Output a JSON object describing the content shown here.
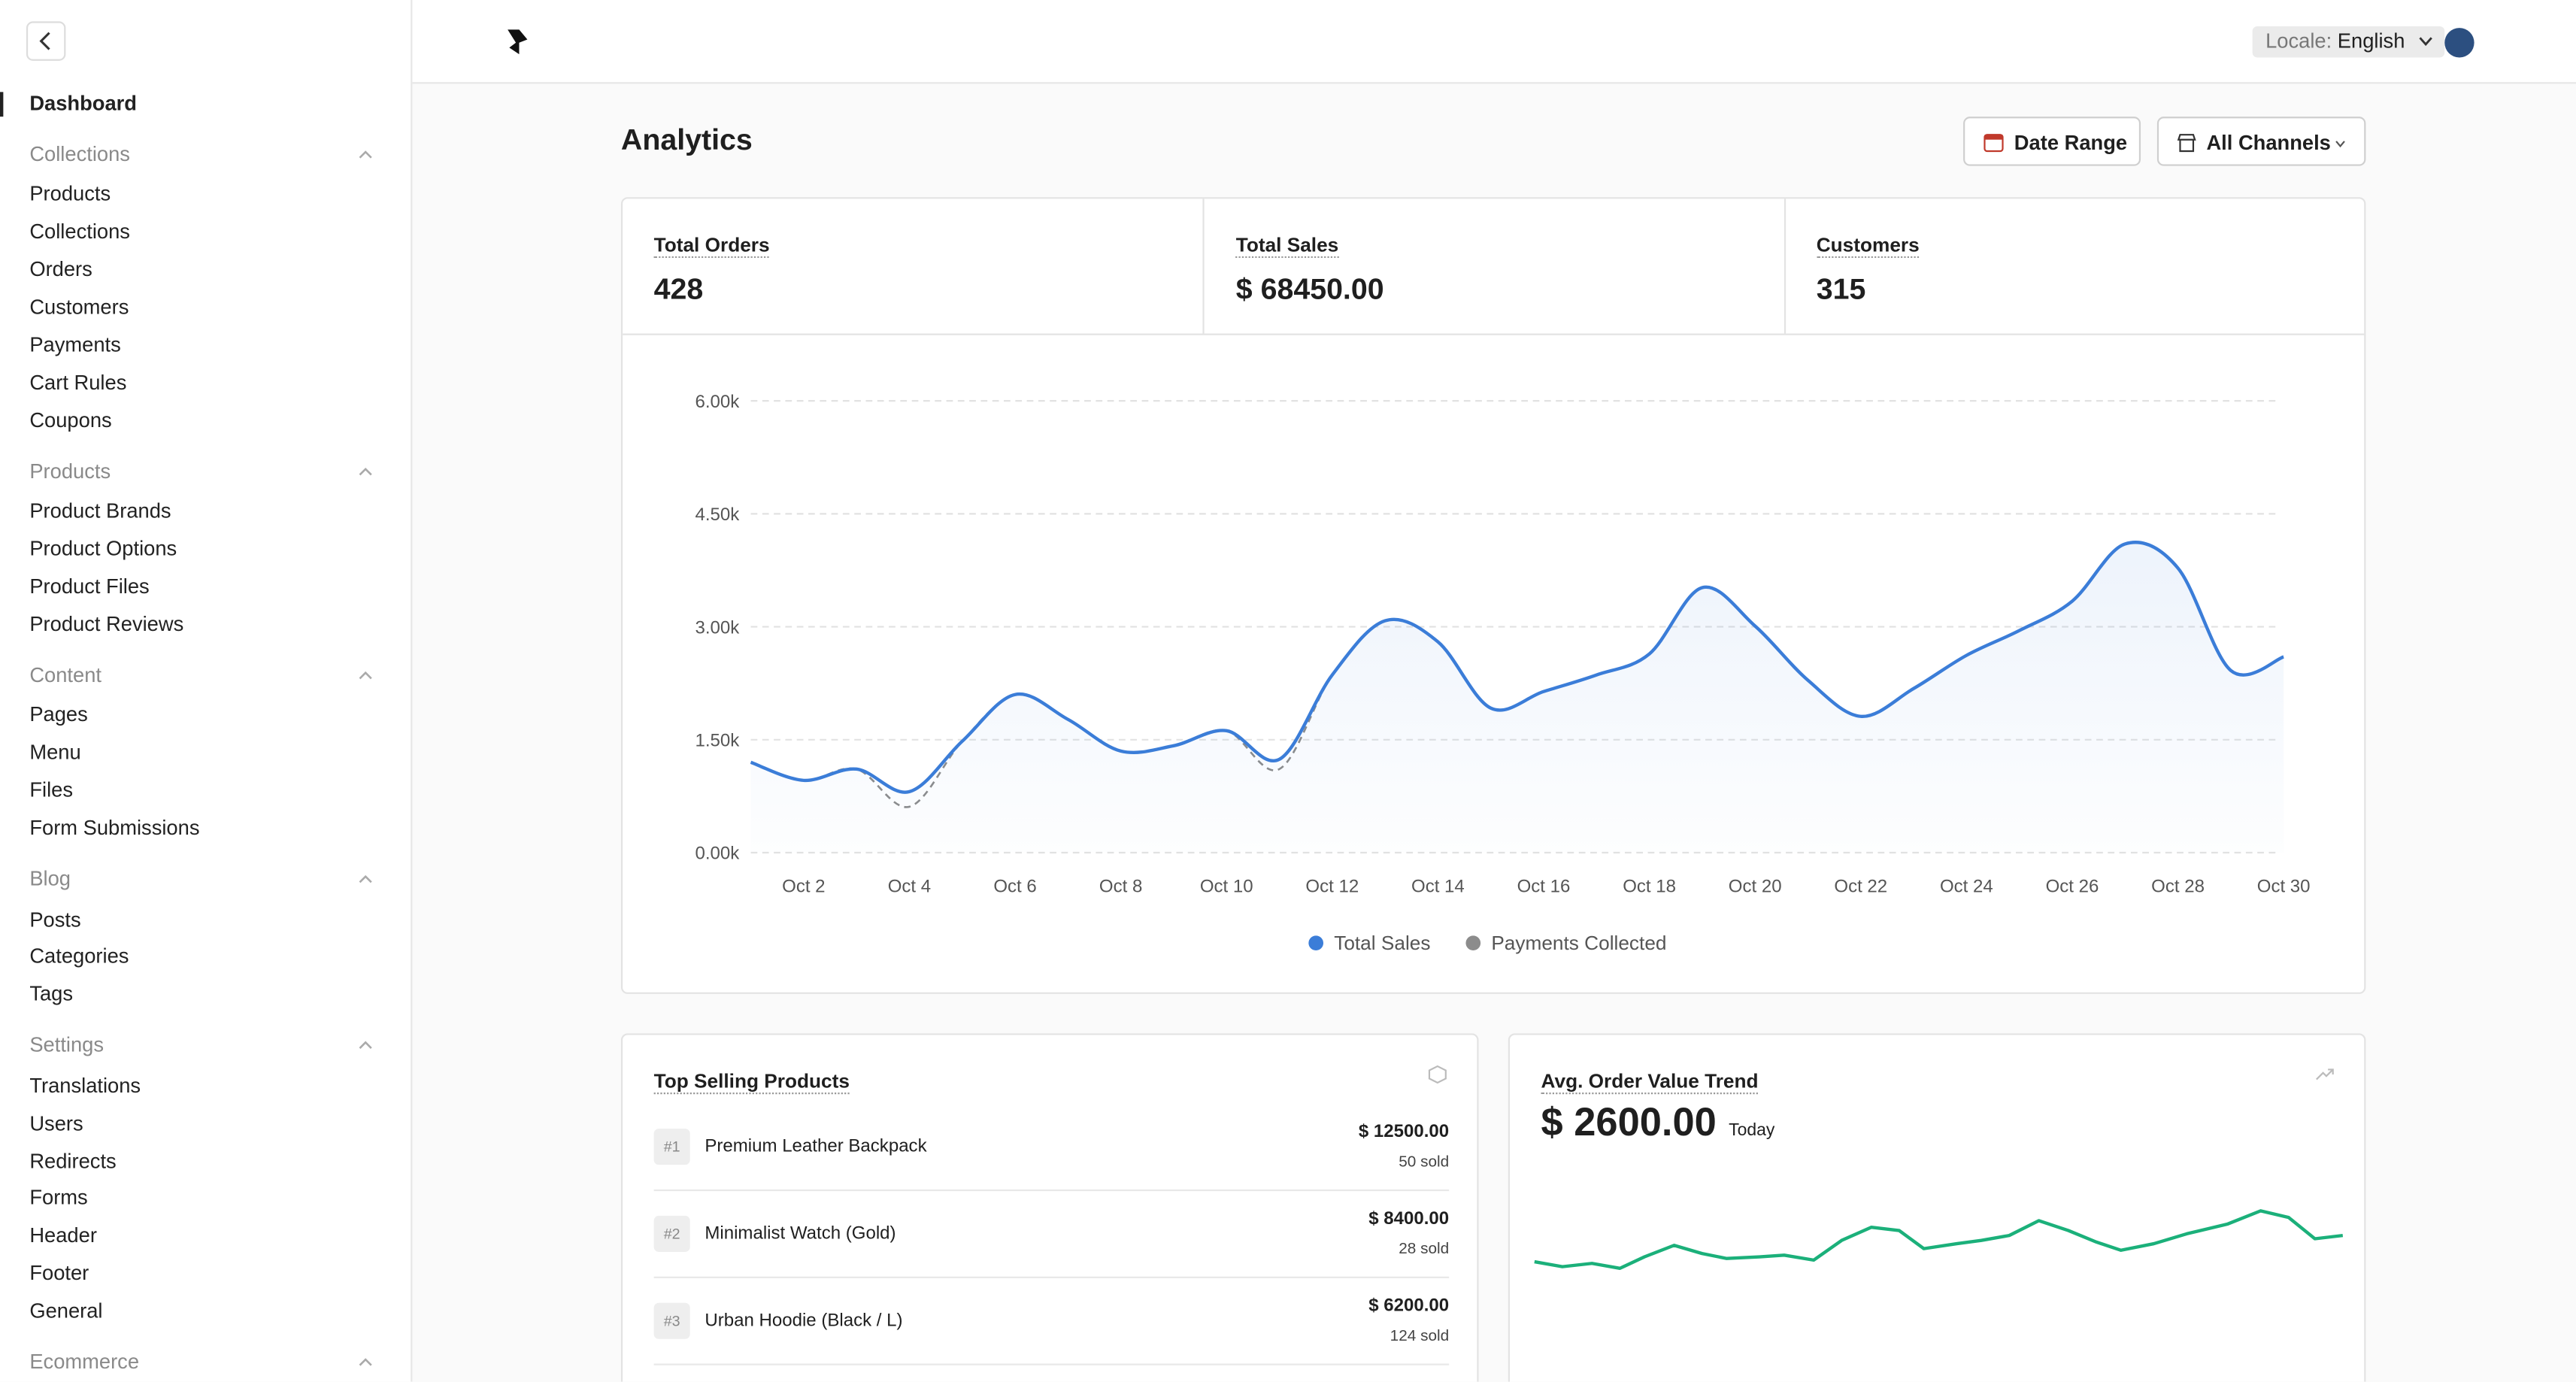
{
  "sidebar": {
    "active": "Dashboard",
    "groups": [
      {
        "title": "Collections",
        "items": [
          "Products",
          "Collections",
          "Orders",
          "Customers",
          "Payments",
          "Cart Rules",
          "Coupons"
        ]
      },
      {
        "title": "Products",
        "items": [
          "Product Brands",
          "Product Options",
          "Product Files",
          "Product Reviews"
        ]
      },
      {
        "title": "Content",
        "items": [
          "Pages",
          "Menu",
          "Files",
          "Form Submissions"
        ]
      },
      {
        "title": "Blog",
        "items": [
          "Posts",
          "Categories",
          "Tags"
        ]
      },
      {
        "title": "Settings",
        "items": [
          "Translations",
          "Users",
          "Redirects",
          "Forms",
          "Header",
          "Footer",
          "General"
        ]
      },
      {
        "title": "Ecommerce",
        "items": []
      }
    ]
  },
  "header": {
    "locale_label": "Locale:",
    "locale": "English"
  },
  "page": {
    "title": "Analytics",
    "buttons": [
      "Date Range",
      "All Channels"
    ]
  },
  "stats": [
    {
      "label": "Total Orders",
      "value": "428"
    },
    {
      "label": "Total Sales",
      "value": "$ 68450.00"
    },
    {
      "label": "Customers",
      "value": "315"
    }
  ],
  "chart_data": {
    "type": "line",
    "categories": [
      null,
      "Oct 2",
      null,
      "Oct 4",
      null,
      "Oct 6",
      null,
      "Oct 8",
      null,
      "Oct 10",
      null,
      "Oct 12",
      null,
      "Oct 14",
      null,
      "Oct 16",
      null,
      "Oct 18",
      null,
      "Oct 20",
      null,
      "Oct 22",
      null,
      "Oct 24",
      null,
      "Oct 26",
      null,
      "Oct 28",
      null,
      "Oct 30"
    ],
    "series": [
      {
        "name": "Total Sales",
        "color": "#3b7dd8",
        "style": "solid",
        "values": [
          1200,
          960,
          1110,
          810,
          1480,
          2100,
          1770,
          1350,
          1420,
          1620,
          1240,
          2360,
          3080,
          2800,
          1920,
          2140,
          2360,
          2640,
          3520,
          3010,
          2290,
          1810,
          2180,
          2620,
          2950,
          3340,
          4100,
          3780,
          2420,
          2600
        ]
      },
      {
        "name": "Payments Collected",
        "color": "#8c8c8c",
        "style": "dashed",
        "values": [
          1200,
          960,
          1110,
          610,
          1480,
          2100,
          1770,
          1350,
          1420,
          1620,
          1110,
          2360,
          3080,
          2800,
          1920,
          2140,
          2360,
          2640,
          3520,
          3010,
          2290,
          1810,
          2180,
          2620,
          2950,
          3340,
          4100,
          3780,
          2420,
          2600
        ]
      }
    ],
    "ylim": [
      0,
      6000
    ],
    "yticks": [
      {
        "value": 0,
        "label": "0.00k"
      },
      {
        "value": 1500,
        "label": "1.50k"
      },
      {
        "value": 3000,
        "label": "3.00k"
      },
      {
        "value": 4500,
        "label": "4.50k"
      },
      {
        "value": 6000,
        "label": "6.00k"
      }
    ],
    "grid": true
  },
  "top_products": {
    "title": "Top Selling Products",
    "items": [
      {
        "rank": "#1",
        "name": "Premium Leather Backpack",
        "amount": "$ 12500.00",
        "sold": "50 sold"
      },
      {
        "rank": "#2",
        "name": "Minimalist Watch (Gold)",
        "amount": "$ 8400.00",
        "sold": "28 sold"
      },
      {
        "rank": "#3",
        "name": "Urban Hoodie (Black / L)",
        "amount": "$ 6200.00",
        "sold": "124 sold"
      }
    ]
  },
  "avg_order": {
    "title": "Avg. Order Value Trend",
    "value": "$ 2600.00",
    "period": "Today"
  }
}
